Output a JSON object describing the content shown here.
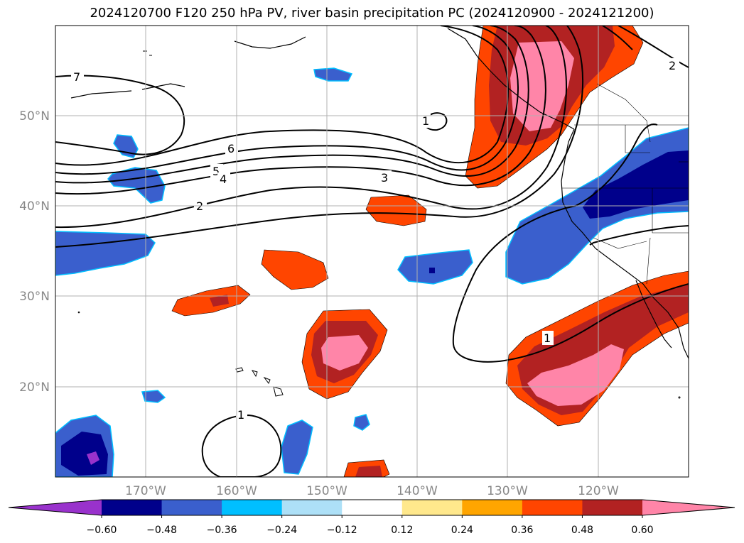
{
  "title": "2024120700 F120 250 hPa PV, river basin precipitation PC (2024120900 - 2024121200)",
  "map": {
    "lon_range": [
      -180,
      -110
    ],
    "lat_range": [
      10,
      60
    ],
    "lat_ticks": [
      {
        "value": 50,
        "label": "50°N"
      },
      {
        "value": 40,
        "label": "40°N"
      },
      {
        "value": 30,
        "label": "30°N"
      },
      {
        "value": 20,
        "label": "20°N"
      }
    ],
    "lon_ticks": [
      {
        "value": -170,
        "label": "170°W"
      },
      {
        "value": -160,
        "label": "160°W"
      },
      {
        "value": -150,
        "label": "150°W"
      },
      {
        "value": -140,
        "label": "140°W"
      },
      {
        "value": -130,
        "label": "130°W"
      },
      {
        "value": -120,
        "label": "120°W"
      }
    ],
    "pv_contour_labels": [
      "7",
      "6",
      "5",
      "4",
      "3",
      "2",
      "1",
      "1",
      "1",
      "2"
    ]
  },
  "colorbar": {
    "colors": [
      "#9932CC",
      "#00008B",
      "#3A5FCD",
      "#00BFFF",
      "#ADE0F7",
      "#FFFFFF",
      "#FFE88C",
      "#FFA500",
      "#FF4500",
      "#B22222",
      "#FF85A8"
    ],
    "labels": [
      "−0.60",
      "−0.48",
      "−0.36",
      "−0.24",
      "−0.12",
      "0.12",
      "0.24",
      "0.36",
      "0.48",
      "0.60"
    ]
  }
}
